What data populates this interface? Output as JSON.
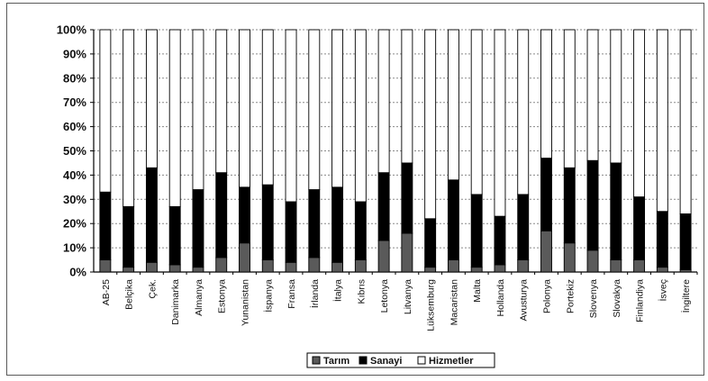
{
  "chart_data": {
    "type": "bar",
    "stacked": true,
    "percent_stacked": true,
    "title": "",
    "xlabel": "",
    "ylabel": "",
    "ylim": [
      0,
      100
    ],
    "yticks": [
      "0%",
      "10%",
      "20%",
      "30%",
      "40%",
      "50%",
      "60%",
      "70%",
      "80%",
      "90%",
      "100%"
    ],
    "grid": "horizontal dashed",
    "legend_position": "bottom",
    "categories": [
      "AB-25",
      "Belçika",
      "Çek.",
      "Danimarka",
      "Almanya",
      "Estonya",
      "Yunanistan",
      "İspanya",
      "Fransa",
      "İrlanda",
      "İtalya",
      "Kıbrıs",
      "Letonya",
      "Litvanya",
      "Lüksemburg",
      "Macaristan",
      "Malta",
      "Hollanda",
      "Avusturya",
      "Polonya",
      "Portekiz",
      "Slovenya",
      "Slovakya",
      "Finlandiya",
      "İsveç",
      "İngiltere"
    ],
    "series": [
      {
        "name": "Tarım",
        "color": "#5a5a5a",
        "values": [
          5,
          2,
          4,
          3,
          2,
          6,
          12,
          5,
          4,
          6,
          4,
          5,
          13,
          16,
          2,
          5,
          2,
          3,
          5,
          17,
          12,
          9,
          5,
          5,
          2,
          1
        ]
      },
      {
        "name": "Sanayi",
        "color": "#000000",
        "values": [
          28,
          25,
          39,
          24,
          32,
          35,
          23,
          31,
          25,
          28,
          31,
          24,
          28,
          29,
          20,
          33,
          30,
          20,
          27,
          30,
          31,
          37,
          40,
          26,
          23,
          23
        ]
      },
      {
        "name": "Hizmetler",
        "color": "#ffffff",
        "values": [
          67,
          73,
          57,
          73,
          66,
          59,
          65,
          64,
          71,
          66,
          65,
          71,
          59,
          55,
          78,
          62,
          68,
          77,
          68,
          53,
          57,
          54,
          55,
          69,
          75,
          76
        ]
      }
    ]
  }
}
